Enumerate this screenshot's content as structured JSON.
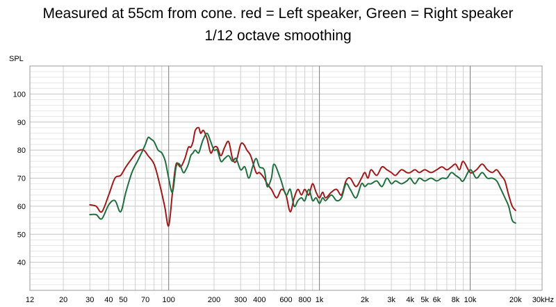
{
  "chart_data": {
    "type": "line",
    "title": "Measured at 55cm from cone. red = Left speaker, Green = Right speaker",
    "subtitle": "1/12 octave smoothing",
    "ylabel": "SPL",
    "xlabel": "",
    "x_scale": "log",
    "xlim": [
      12,
      30000
    ],
    "ylim": [
      30,
      110
    ],
    "grid": true,
    "x_ticks": [
      {
        "value": 12,
        "label": "12"
      },
      {
        "value": 20,
        "label": "20"
      },
      {
        "value": 30,
        "label": "30"
      },
      {
        "value": 40,
        "label": "40"
      },
      {
        "value": 50,
        "label": "50"
      },
      {
        "value": 70,
        "label": "70"
      },
      {
        "value": 100,
        "label": "100"
      },
      {
        "value": 200,
        "label": "200"
      },
      {
        "value": 300,
        "label": "300"
      },
      {
        "value": 400,
        "label": "400"
      },
      {
        "value": 600,
        "label": "600"
      },
      {
        "value": 800,
        "label": "800"
      },
      {
        "value": 1000,
        "label": "1k"
      },
      {
        "value": 2000,
        "label": "2k"
      },
      {
        "value": 3000,
        "label": "3k"
      },
      {
        "value": 4000,
        "label": "4k"
      },
      {
        "value": 5000,
        "label": "5k"
      },
      {
        "value": 6000,
        "label": "6k"
      },
      {
        "value": 8000,
        "label": "8k"
      },
      {
        "value": 10000,
        "label": "10k"
      },
      {
        "value": 20000,
        "label": "20k"
      },
      {
        "value": 30000,
        "label": "30kHz"
      }
    ],
    "y_ticks": [
      40,
      50,
      60,
      70,
      80,
      90,
      100
    ],
    "series": [
      {
        "color": "#a01818",
        "x": [
          30,
          33,
          36,
          40,
          44,
          48,
          52,
          57,
          62,
          68,
          73,
          80,
          87,
          94,
          100,
          106,
          112,
          120,
          128,
          135,
          140,
          145,
          150,
          158,
          163,
          170,
          180,
          190,
          200,
          210,
          222,
          235,
          250,
          265,
          280,
          300,
          315,
          330,
          350,
          380,
          400,
          430,
          450,
          480,
          520,
          560,
          600,
          640,
          680,
          720,
          760,
          800,
          850,
          900,
          950,
          1000,
          1050,
          1100,
          1200,
          1300,
          1400,
          1500,
          1600,
          1750,
          1900,
          2000,
          2100,
          2200,
          2400,
          2600,
          2800,
          3000,
          3200,
          3500,
          3800,
          4000,
          4300,
          4600,
          5000,
          5500,
          6000,
          6500,
          7000,
          7500,
          8000,
          8500,
          9000,
          10000,
          11000,
          12000,
          13000,
          14000,
          15000,
          16000,
          17000,
          18000,
          19000,
          20000
        ],
        "y": [
          60.5,
          60,
          58,
          64,
          70,
          71,
          74,
          77,
          79.5,
          80,
          78,
          75,
          68,
          60,
          53,
          65,
          75,
          74,
          77,
          81,
          81,
          83,
          87,
          88,
          86,
          87,
          84,
          79,
          81,
          81,
          78,
          81,
          83,
          77,
          76,
          82,
          82,
          80,
          78,
          72,
          72,
          70,
          68,
          66,
          63,
          66,
          64,
          58,
          63,
          66,
          64,
          66,
          64,
          68,
          65,
          63,
          65,
          63,
          65,
          66,
          64,
          69,
          70,
          67,
          70,
          72,
          70,
          73,
          71,
          74,
          73,
          72,
          71,
          73,
          72,
          72,
          73,
          72,
          73,
          72,
          73,
          74,
          73,
          74,
          75,
          73,
          76,
          72,
          73,
          75,
          73,
          72,
          73,
          71,
          69,
          64,
          60,
          58.5
        ]
      },
      {
        "color": "#1e6e3e",
        "x": [
          30,
          33,
          36,
          40,
          44,
          48,
          52,
          57,
          62,
          66,
          70,
          73,
          76,
          80,
          85,
          90,
          95,
          100,
          106,
          112,
          118,
          125,
          130,
          135,
          140,
          145,
          150,
          158,
          165,
          170,
          180,
          190,
          200,
          210,
          222,
          235,
          250,
          265,
          280,
          300,
          320,
          340,
          360,
          380,
          400,
          430,
          450,
          480,
          500,
          550,
          600,
          640,
          680,
          720,
          760,
          800,
          850,
          900,
          950,
          1000,
          1050,
          1100,
          1200,
          1300,
          1400,
          1500,
          1600,
          1750,
          1900,
          2000,
          2100,
          2200,
          2400,
          2600,
          2800,
          3000,
          3200,
          3500,
          3800,
          4000,
          4300,
          4600,
          5000,
          5500,
          6000,
          6500,
          7000,
          7500,
          8000,
          8500,
          9000,
          10000,
          11000,
          12000,
          13000,
          14000,
          15000,
          16000,
          17000,
          18000,
          19000,
          20000
        ],
        "y": [
          57,
          57,
          55.5,
          60.5,
          62,
          58,
          65,
          72,
          76,
          79,
          82,
          84.5,
          84,
          83,
          80,
          79,
          76,
          70,
          65,
          74,
          75,
          72,
          73,
          75,
          78,
          79,
          80,
          79,
          82,
          84,
          86,
          83,
          80,
          80,
          76,
          77,
          78,
          76,
          77,
          73,
          74,
          70,
          74,
          77,
          74,
          73,
          67,
          70,
          75,
          70,
          64,
          66,
          60,
          62,
          63,
          62,
          66,
          62,
          63,
          61,
          63,
          62,
          64,
          62,
          63,
          68,
          66,
          63,
          68,
          67,
          68,
          68,
          69,
          67,
          70,
          68,
          69,
          68,
          69,
          70,
          68,
          70,
          69,
          70,
          69,
          70,
          70,
          72,
          71,
          70,
          69,
          73,
          70,
          72,
          70,
          70,
          69,
          66,
          63,
          60,
          55,
          54
        ]
      }
    ]
  }
}
